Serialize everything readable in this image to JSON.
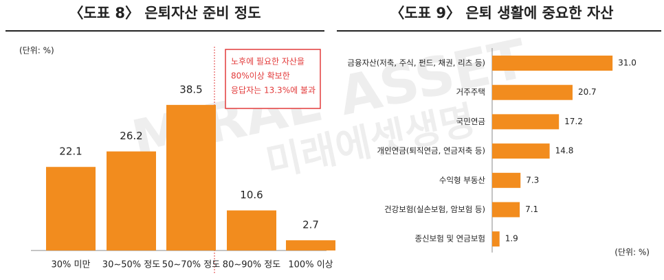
{
  "chart_data": [
    {
      "type": "bar",
      "title": "〈도표 8〉 은퇴자산 준비 정도",
      "unit": "(단위: %)",
      "categories": [
        "30% 미만",
        "30~50% 정도",
        "50~70% 정도",
        "80~90% 정도",
        "100% 이상"
      ],
      "values": [
        22.1,
        26.2,
        38.5,
        10.6,
        2.7
      ],
      "color": "#f28c1e",
      "annotation": [
        "노후에 필요한 자산을",
        "80%이상 확보한",
        "응답자는 13.3%에 불과"
      ]
    },
    {
      "type": "hbar",
      "title": "〈도표 9〉 은퇴 생활에 중요한 자산",
      "unit": "(단위: %)",
      "categories": [
        "금융자산(저축, 주식, 펀드, 채권, 리츠 등)",
        "거주주택",
        "국민연금",
        "개인연금(퇴직연금, 연금저축 등)",
        "수익형 부동산",
        "건강보험(실손보험, 암보험 등)",
        "종신보험 및 연금보험"
      ],
      "values": [
        31.0,
        20.7,
        17.2,
        14.8,
        7.3,
        7.1,
        1.9
      ],
      "value_labels": [
        "31.0",
        "20.7",
        "17.2",
        "14.8",
        "7.3",
        "7.1",
        "1.9"
      ],
      "color": "#f28c1e"
    }
  ],
  "watermark": [
    "MIRAE ASSET",
    "미래에셋생명"
  ]
}
